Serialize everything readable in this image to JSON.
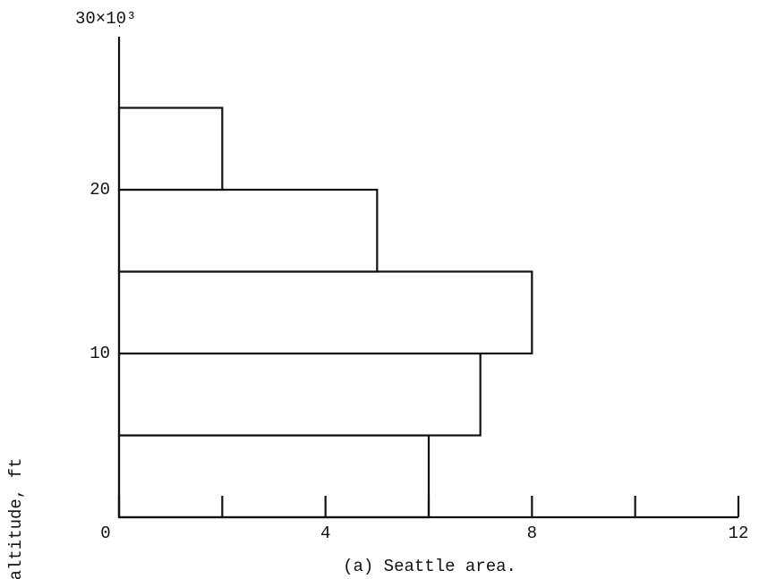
{
  "chart_data": {
    "type": "histogram",
    "orientation": "horizontal",
    "ylabel": "altitude, ft",
    "caption": "(a) Seattle area.",
    "bins": [
      0,
      5,
      10,
      15,
      20,
      25
    ],
    "values": [
      6,
      7,
      8,
      5,
      2
    ],
    "color": "#ffffff",
    "edgecolor": "#111111",
    "xlim": [
      0,
      12
    ],
    "xticks": [
      0,
      4,
      8,
      12
    ],
    "xminor_ticks": [
      2,
      6,
      10
    ],
    "ylim": [
      0,
      30
    ],
    "yticks": [
      10,
      20,
      {
        "value": 30,
        "label": "30×10³"
      }
    ],
    "grid": false
  }
}
